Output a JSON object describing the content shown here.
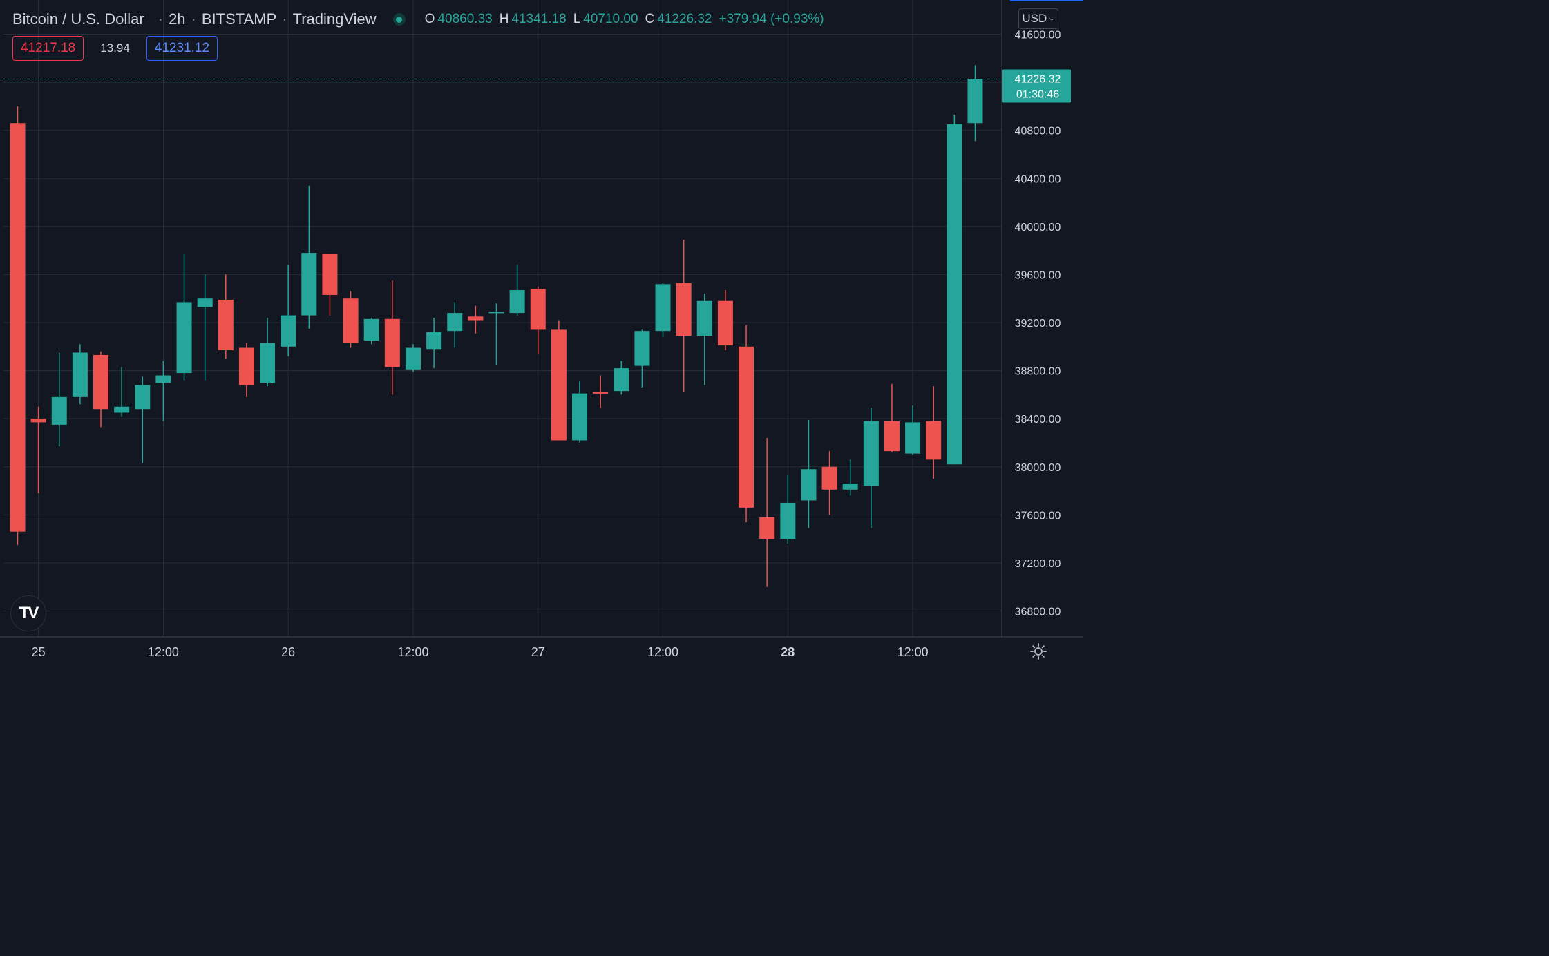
{
  "header": {
    "symbol": "Bitcoin / U.S. Dollar",
    "interval": "2h",
    "exchange": "BITSTAMP",
    "platform": "TradingView",
    "live_icon": "live-status-dot-icon",
    "ohlc": {
      "o_label": "O",
      "o_value": "40860.33",
      "h_label": "H",
      "h_value": "41341.18",
      "l_label": "L",
      "l_value": "40710.00",
      "c_label": "C",
      "c_value": "41226.32",
      "change": "+379.94 (+0.93%)"
    }
  },
  "quote": {
    "bid": "41217.18",
    "spread": "13.94",
    "ask": "41231.12"
  },
  "currency_selector": {
    "label": "USD",
    "icon": "chevron-down-icon"
  },
  "logo": {
    "text": "TV",
    "icon": "tradingview-logo-icon"
  },
  "settings": {
    "icon": "settings-gear-icon"
  },
  "colors": {
    "background": "#131722",
    "up": "#26a69a",
    "down": "#ef5350",
    "grid": "#2a2e39",
    "text": "#d1d4dc"
  },
  "chart_data": {
    "type": "candlestick",
    "title": "Bitcoin / U.S. Dollar · 2h · BITSTAMP",
    "xlabel": "",
    "ylabel": "",
    "ylim": [
      36500,
      41750
    ],
    "price_ticks": [
      "41600.00",
      "40800.00",
      "40400.00",
      "40000.00",
      "39600.00",
      "39200.00",
      "38800.00",
      "38400.00",
      "38000.00",
      "37600.00",
      "37200.00",
      "36800.00"
    ],
    "time_ticks": [
      {
        "label": "25",
        "index": 1
      },
      {
        "label": "12:00",
        "index": 7
      },
      {
        "label": "26",
        "index": 13
      },
      {
        "label": "12:00",
        "index": 19
      },
      {
        "label": "27",
        "index": 25
      },
      {
        "label": "12:00",
        "index": 31
      },
      {
        "label": "28",
        "index": 37,
        "bold": true
      },
      {
        "label": "12:00",
        "index": 43
      }
    ],
    "last_price": {
      "value": 41226.32,
      "label": "41226.32",
      "countdown": "01:30:46"
    },
    "candles": [
      {
        "o": 40860,
        "h": 41000,
        "l": 37350,
        "c": 37460
      },
      {
        "o": 38400,
        "h": 38500,
        "l": 37780,
        "c": 38370
      },
      {
        "o": 38350,
        "h": 38950,
        "l": 38170,
        "c": 38580
      },
      {
        "o": 38580,
        "h": 39020,
        "l": 38520,
        "c": 38950
      },
      {
        "o": 38930,
        "h": 38960,
        "l": 38330,
        "c": 38480
      },
      {
        "o": 38450,
        "h": 38830,
        "l": 38420,
        "c": 38500
      },
      {
        "o": 38480,
        "h": 38750,
        "l": 38030,
        "c": 38680
      },
      {
        "o": 38700,
        "h": 38880,
        "l": 38380,
        "c": 38760
      },
      {
        "o": 38780,
        "h": 39770,
        "l": 38720,
        "c": 39370
      },
      {
        "o": 39330,
        "h": 39600,
        "l": 38720,
        "c": 39400
      },
      {
        "o": 39390,
        "h": 39600,
        "l": 38900,
        "c": 38970
      },
      {
        "o": 38990,
        "h": 39030,
        "l": 38580,
        "c": 38680
      },
      {
        "o": 38700,
        "h": 39240,
        "l": 38670,
        "c": 39030
      },
      {
        "o": 39000,
        "h": 39680,
        "l": 38920,
        "c": 39260
      },
      {
        "o": 39260,
        "h": 40340,
        "l": 39150,
        "c": 39780
      },
      {
        "o": 39770,
        "h": 39770,
        "l": 39260,
        "c": 39430
      },
      {
        "o": 39400,
        "h": 39460,
        "l": 38990,
        "c": 39030
      },
      {
        "o": 39050,
        "h": 39240,
        "l": 39020,
        "c": 39230
      },
      {
        "o": 39230,
        "h": 39550,
        "l": 38600,
        "c": 38830
      },
      {
        "o": 38810,
        "h": 39020,
        "l": 38790,
        "c": 38990
      },
      {
        "o": 38980,
        "h": 39240,
        "l": 38820,
        "c": 39120
      },
      {
        "o": 39130,
        "h": 39370,
        "l": 38990,
        "c": 39280
      },
      {
        "o": 39250,
        "h": 39340,
        "l": 39110,
        "c": 39220
      },
      {
        "o": 39290,
        "h": 39360,
        "l": 38850,
        "c": 39290
      },
      {
        "o": 39280,
        "h": 39680,
        "l": 39260,
        "c": 39470
      },
      {
        "o": 39480,
        "h": 39500,
        "l": 38940,
        "c": 39140
      },
      {
        "o": 39140,
        "h": 39220,
        "l": 38220,
        "c": 38220
      },
      {
        "o": 38220,
        "h": 38710,
        "l": 38200,
        "c": 38610
      },
      {
        "o": 38620,
        "h": 38760,
        "l": 38490,
        "c": 38610
      },
      {
        "o": 38630,
        "h": 38880,
        "l": 38600,
        "c": 38820
      },
      {
        "o": 38840,
        "h": 39140,
        "l": 38660,
        "c": 39130
      },
      {
        "o": 39130,
        "h": 39530,
        "l": 39080,
        "c": 39520
      },
      {
        "o": 39530,
        "h": 39890,
        "l": 38620,
        "c": 39090
      },
      {
        "o": 39090,
        "h": 39440,
        "l": 38680,
        "c": 39380
      },
      {
        "o": 39380,
        "h": 39470,
        "l": 38970,
        "c": 39010
      },
      {
        "o": 39000,
        "h": 39180,
        "l": 37540,
        "c": 37660
      },
      {
        "o": 37580,
        "h": 38240,
        "l": 37000,
        "c": 37400
      },
      {
        "o": 37400,
        "h": 37930,
        "l": 37360,
        "c": 37700
      },
      {
        "o": 37720,
        "h": 38390,
        "l": 37490,
        "c": 37980
      },
      {
        "o": 38000,
        "h": 38130,
        "l": 37600,
        "c": 37810
      },
      {
        "o": 37810,
        "h": 38060,
        "l": 37760,
        "c": 37860
      },
      {
        "o": 37840,
        "h": 38490,
        "l": 37490,
        "c": 38380
      },
      {
        "o": 38380,
        "h": 38690,
        "l": 38120,
        "c": 38130
      },
      {
        "o": 38110,
        "h": 38510,
        "l": 38100,
        "c": 38370
      },
      {
        "o": 38380,
        "h": 38670,
        "l": 37900,
        "c": 38060
      },
      {
        "o": 38020,
        "h": 40930,
        "l": 38020,
        "c": 40850
      },
      {
        "o": 40860,
        "h": 41341.18,
        "l": 40710,
        "c": 41226.32
      }
    ]
  }
}
